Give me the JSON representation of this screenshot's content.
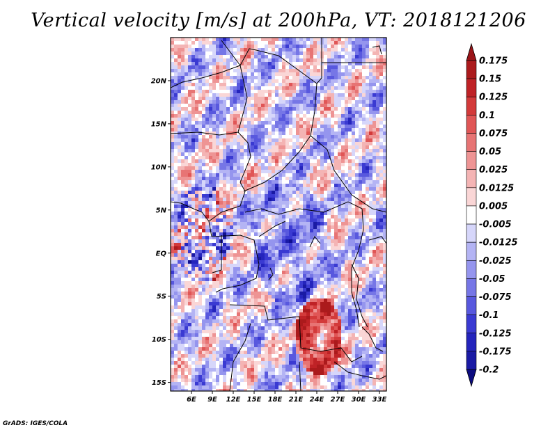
{
  "title": "Vertical velocity [m/s] at 200hPa, VT: 2018121206",
  "credit": "GrADS: IGES/COLA",
  "map": {
    "lon_range": [
      3,
      34
    ],
    "lat_range": [
      -16,
      25
    ],
    "lat_ticks": [
      {
        "value": 20,
        "label": "20N"
      },
      {
        "value": 15,
        "label": "15N"
      },
      {
        "value": 10,
        "label": "10N"
      },
      {
        "value": 5,
        "label": "5N"
      },
      {
        "value": 0,
        "label": "EQ"
      },
      {
        "value": -5,
        "label": "5S"
      },
      {
        "value": -10,
        "label": "10S"
      },
      {
        "value": -15,
        "label": "15S"
      }
    ],
    "lon_ticks": [
      {
        "value": 6,
        "label": "6E"
      },
      {
        "value": 9,
        "label": "9E"
      },
      {
        "value": 12,
        "label": "12E"
      },
      {
        "value": 15,
        "label": "15E"
      },
      {
        "value": 18,
        "label": "18E"
      },
      {
        "value": 21,
        "label": "21E"
      },
      {
        "value": 24,
        "label": "24E"
      },
      {
        "value": 27,
        "label": "27E"
      },
      {
        "value": 30,
        "label": "30E"
      },
      {
        "value": 33,
        "label": "33E"
      }
    ]
  },
  "colorbar": {
    "labels": [
      "0.175",
      "0.15",
      "0.125",
      "0.1",
      "0.075",
      "0.05",
      "0.025",
      "0.0125",
      "0.005",
      "-0.005",
      "-0.0125",
      "-0.025",
      "-0.05",
      "-0.075",
      "-0.1",
      "-0.125",
      "-0.175",
      "-0.2"
    ],
    "colors": [
      "#ab1a1c",
      "#bf2226",
      "#d33a3a",
      "#e05656",
      "#e77474",
      "#ee9494",
      "#f4b4b4",
      "#fad6d6",
      "#ffffff",
      "#d6d6fa",
      "#b4b4f4",
      "#9595ee",
      "#7676e6",
      "#5858de",
      "#3a3ad2",
      "#2424bc",
      "#1a1aa4",
      "#101090"
    ],
    "max_arrow_color": "#9a1418",
    "min_arrow_color": "#0c0c80"
  }
}
